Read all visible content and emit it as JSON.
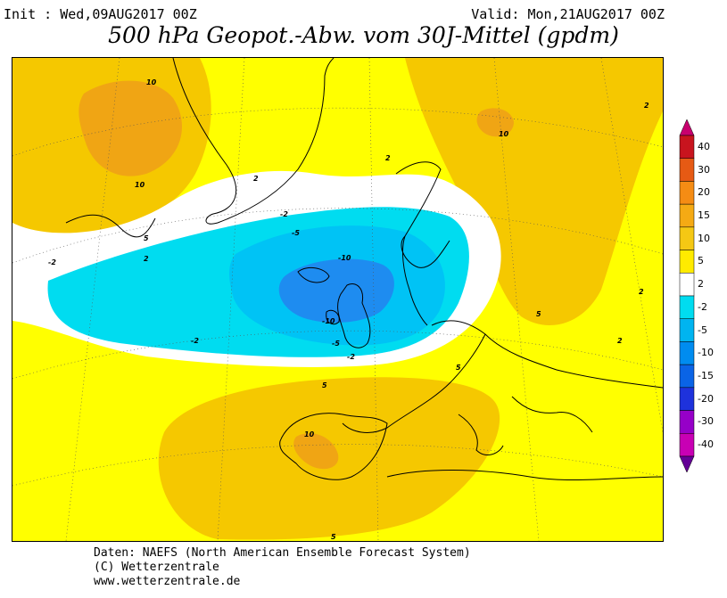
{
  "header": {
    "init": "Init : Wed,09AUG2017 00Z",
    "valid": "Valid: Mon,21AUG2017 00Z",
    "title": "500 hPa Geopot.-Abw. vom 30J-Mittel (gpdm)"
  },
  "legend": {
    "labels": [
      "40",
      "30",
      "20",
      "15",
      "10",
      "5",
      "2",
      "-2",
      "-5",
      "-10",
      "-15",
      "-20",
      "-30",
      "-40"
    ],
    "colors": [
      "#c8141e",
      "#e65a14",
      "#f58c14",
      "#f5aa14",
      "#f5c814",
      "#ffeb00",
      "#ffffff",
      "#00dcf0",
      "#00b4f0",
      "#008cf0",
      "#0a64e6",
      "#1e32dc",
      "#9600c8",
      "#c800b4"
    ],
    "top_color": "#c8006e",
    "bottom_color": "#640096"
  },
  "contour_labels": [
    "10",
    "10",
    "5",
    "2",
    "-2",
    "10",
    "2",
    "2",
    "-2",
    "-5",
    "-10",
    "-10",
    "-5",
    "-2",
    "-2",
    "5",
    "5",
    "10",
    "5",
    "2",
    "5",
    "2",
    "2"
  ],
  "colors": {
    "pos2": "#ffff00",
    "pos5": "#f5c800",
    "pos10": "#f0a514",
    "neg2": "#00dcf0",
    "neg5": "#00c3f5",
    "neg10": "#1e8cf0",
    "neutral": "#ffffff"
  },
  "footer": {
    "line1": "Daten: NAEFS (North American Ensemble Forecast System)",
    "line2": "(C) Wetterzentrale",
    "line3": "www.wetterzentrale.de"
  }
}
